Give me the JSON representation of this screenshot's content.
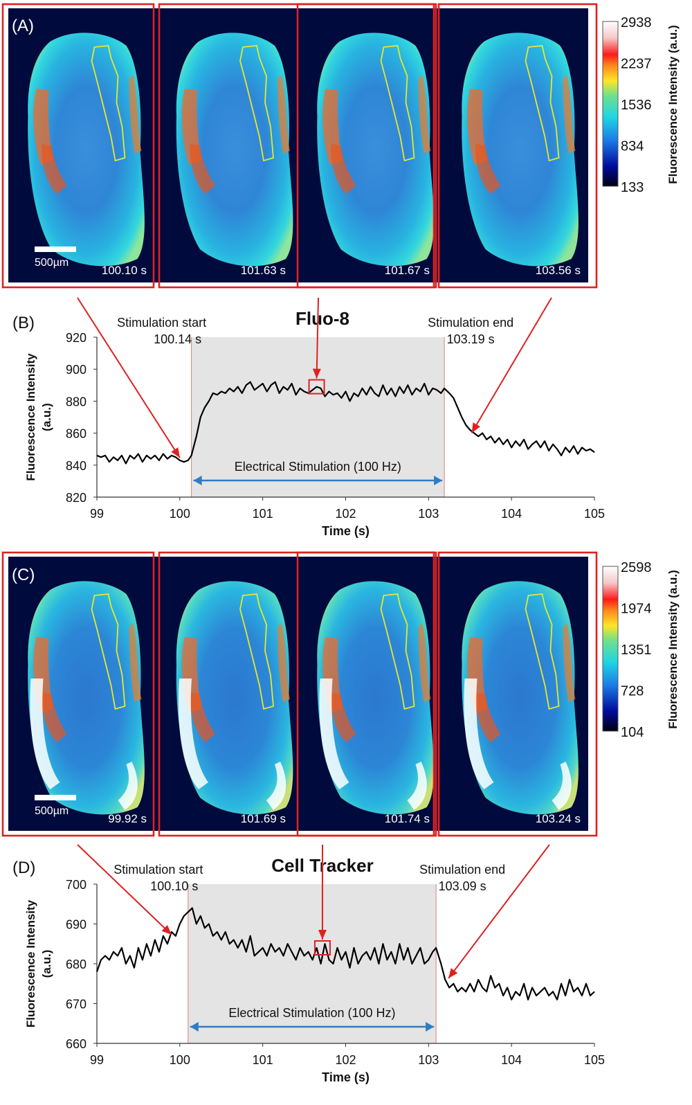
{
  "figure": {
    "panel_labels": {
      "a": "(A)",
      "b": "(B)",
      "c": "(C)",
      "d": "(D)"
    },
    "scale_bar": "500µm",
    "colorbar_a": {
      "ticks": [
        "2938",
        "2237",
        "1536",
        "834",
        "133"
      ],
      "label": "Fluorescence Intensity (a.u.)"
    },
    "colorbar_c": {
      "ticks": [
        "2598",
        "1974",
        "1351",
        "728",
        "104"
      ],
      "label": "Fluorescence Intensity (a.u.)"
    },
    "row_a_times": [
      "100.10 s",
      "101.63 s",
      "101.67 s",
      "103.56 s"
    ],
    "row_c_times": [
      "99.92 s",
      "101.69 s",
      "101.74 s",
      "103.24 s"
    ]
  },
  "chart_data": [
    {
      "type": "line",
      "id": "B",
      "title": "Fluo-8",
      "xlabel": "Time (s)",
      "ylabel": "Fluorescence Intensity (a.u.)",
      "xlim": [
        99,
        105
      ],
      "ylim": [
        820,
        920
      ],
      "xticks": [
        "99",
        "100",
        "101",
        "102",
        "103",
        "104",
        "105"
      ],
      "yticks": [
        "920",
        "900",
        "880",
        "860",
        "840",
        "820"
      ],
      "shade_start": 100.14,
      "shade_end": 103.19,
      "stim_start_label": "Stimulation start",
      "stim_start_value": "100.14 s",
      "stim_end_label": "Stimulation end",
      "stim_end_value": "103.19 s",
      "stim_text": "Electrical Stimulation (100 Hz)",
      "highlight": {
        "x": 101.65,
        "y": 889
      },
      "x": [
        99.0,
        99.05,
        99.1,
        99.15,
        99.2,
        99.25,
        99.3,
        99.35,
        99.4,
        99.45,
        99.5,
        99.55,
        99.6,
        99.65,
        99.7,
        99.75,
        99.8,
        99.85,
        99.9,
        99.95,
        100.0,
        100.05,
        100.1,
        100.14,
        100.2,
        100.25,
        100.3,
        100.35,
        100.4,
        100.45,
        100.5,
        100.55,
        100.6,
        100.65,
        100.7,
        100.75,
        100.8,
        100.85,
        100.9,
        100.95,
        101.0,
        101.05,
        101.1,
        101.15,
        101.2,
        101.25,
        101.3,
        101.35,
        101.4,
        101.45,
        101.5,
        101.55,
        101.6,
        101.65,
        101.7,
        101.75,
        101.8,
        101.85,
        101.9,
        101.95,
        102.0,
        102.05,
        102.1,
        102.15,
        102.2,
        102.25,
        102.3,
        102.35,
        102.4,
        102.45,
        102.5,
        102.55,
        102.6,
        102.65,
        102.7,
        102.75,
        102.8,
        102.85,
        102.9,
        102.95,
        103.0,
        103.05,
        103.1,
        103.15,
        103.19,
        103.25,
        103.3,
        103.35,
        103.4,
        103.45,
        103.5,
        103.55,
        103.6,
        103.65,
        103.7,
        103.75,
        103.8,
        103.85,
        103.9,
        103.95,
        104.0,
        104.05,
        104.1,
        104.15,
        104.2,
        104.25,
        104.3,
        104.35,
        104.4,
        104.45,
        104.5,
        104.55,
        104.6,
        104.65,
        104.7,
        104.75,
        104.8,
        104.85,
        104.9,
        104.95,
        105.0
      ],
      "y": [
        846,
        845,
        846,
        842,
        845,
        843,
        846,
        841,
        846,
        844,
        847,
        842,
        846,
        844,
        846,
        843,
        847,
        844,
        846,
        845,
        843,
        842,
        843,
        846,
        858,
        870,
        876,
        880,
        885,
        884,
        886,
        885,
        888,
        886,
        889,
        885,
        890,
        892,
        887,
        889,
        891,
        886,
        890,
        892,
        885,
        889,
        887,
        891,
        884,
        888,
        886,
        885,
        887,
        889,
        888,
        883,
        886,
        884,
        885,
        882,
        886,
        880,
        885,
        883,
        888,
        884,
        889,
        885,
        883,
        890,
        884,
        888,
        883,
        889,
        885,
        890,
        884,
        888,
        886,
        891,
        884,
        888,
        887,
        885,
        888,
        885,
        882,
        876,
        870,
        865,
        862,
        860,
        858,
        860,
        856,
        858,
        854,
        857,
        853,
        856,
        851,
        855,
        852,
        856,
        850,
        853,
        855,
        851,
        855,
        849,
        853,
        850,
        846,
        851,
        848,
        852,
        847,
        851,
        849,
        850,
        848
      ]
    },
    {
      "type": "line",
      "id": "D",
      "title": "Cell Tracker",
      "xlabel": "Time (s)",
      "ylabel": "Fluorescence Intensity (a.u.)",
      "xlim": [
        99,
        105
      ],
      "ylim": [
        660,
        700
      ],
      "xticks": [
        "99",
        "100",
        "101",
        "102",
        "103",
        "104",
        "105"
      ],
      "yticks": [
        "700",
        "690",
        "680",
        "670",
        "660"
      ],
      "shade_start": 100.1,
      "shade_end": 103.09,
      "stim_start_label": "Stimulation start",
      "stim_start_value": "100.10 s",
      "stim_end_label": "Stimulation end",
      "stim_end_value": "103.09 s",
      "stim_text": "Electrical Stimulation (100 Hz)",
      "highlight": {
        "x": 101.72,
        "y": 684
      },
      "x": [
        99.0,
        99.05,
        99.1,
        99.15,
        99.2,
        99.25,
        99.3,
        99.35,
        99.4,
        99.45,
        99.5,
        99.55,
        99.6,
        99.65,
        99.7,
        99.75,
        99.8,
        99.85,
        99.9,
        99.95,
        100.0,
        100.05,
        100.1,
        100.15,
        100.2,
        100.25,
        100.3,
        100.35,
        100.4,
        100.45,
        100.5,
        100.55,
        100.6,
        100.65,
        100.7,
        100.75,
        100.8,
        100.85,
        100.9,
        100.95,
        101.0,
        101.05,
        101.1,
        101.15,
        101.2,
        101.25,
        101.3,
        101.35,
        101.4,
        101.45,
        101.5,
        101.55,
        101.6,
        101.65,
        101.7,
        101.75,
        101.8,
        101.85,
        101.9,
        101.95,
        102.0,
        102.05,
        102.1,
        102.15,
        102.2,
        102.25,
        102.3,
        102.35,
        102.4,
        102.45,
        102.5,
        102.55,
        102.6,
        102.65,
        102.7,
        102.75,
        102.8,
        102.85,
        102.9,
        102.95,
        103.0,
        103.05,
        103.09,
        103.15,
        103.2,
        103.25,
        103.3,
        103.35,
        103.4,
        103.45,
        103.5,
        103.55,
        103.6,
        103.65,
        103.7,
        103.75,
        103.8,
        103.85,
        103.9,
        103.95,
        104.0,
        104.05,
        104.1,
        104.15,
        104.2,
        104.25,
        104.3,
        104.35,
        104.4,
        104.45,
        104.5,
        104.55,
        104.6,
        104.65,
        104.7,
        104.75,
        104.8,
        104.85,
        104.9,
        104.95,
        105.0
      ],
      "y": [
        678,
        681,
        682,
        681,
        683,
        682,
        684,
        680,
        682,
        679,
        684,
        681,
        685,
        682,
        686,
        683,
        687,
        685,
        688,
        687,
        690,
        692,
        693,
        694,
        690,
        692,
        689,
        690,
        687,
        688,
        686,
        688,
        685,
        686,
        684,
        686,
        683,
        687,
        682,
        683,
        684,
        682,
        685,
        683,
        684,
        682,
        685,
        683,
        681,
        684,
        682,
        683,
        681,
        684,
        680,
        685,
        681,
        680,
        684,
        681,
        683,
        679,
        684,
        680,
        682,
        683,
        681,
        684,
        680,
        685,
        681,
        683,
        680,
        685,
        681,
        684,
        680,
        682,
        684,
        680,
        681,
        683,
        684,
        680,
        676,
        674,
        675,
        673,
        674,
        673,
        675,
        673,
        676,
        674,
        673,
        677,
        674,
        675,
        672,
        674,
        671,
        673,
        672,
        675,
        671,
        674,
        672,
        673,
        674,
        672,
        673,
        671,
        675,
        672,
        676,
        673,
        674,
        672,
        675,
        672,
        673
      ]
    }
  ]
}
